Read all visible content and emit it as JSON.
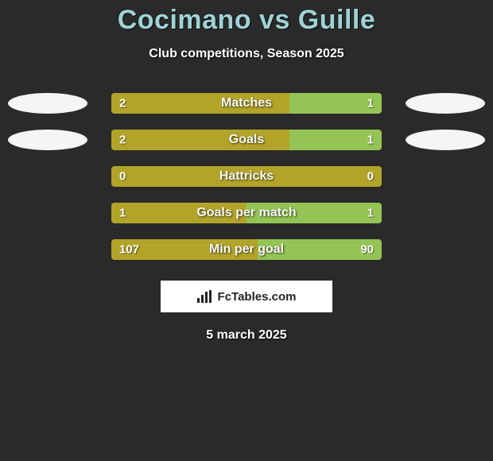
{
  "title": "Cocimano vs Guille",
  "subtitle": "Club competitions, Season 2025",
  "date": "5 march 2025",
  "brand": "FcTables.com",
  "colors": {
    "left": "#b2a429",
    "right": "#94c454",
    "background": "#2a2a2a",
    "avatar": "#f5f5f5",
    "title": "#9fd3d6"
  },
  "stats": [
    {
      "label": "Matches",
      "left_val": "2",
      "right_val": "1",
      "left_pct": 66,
      "right_pct": 34,
      "show_avatars": true
    },
    {
      "label": "Goals",
      "left_val": "2",
      "right_val": "1",
      "left_pct": 66,
      "right_pct": 34,
      "show_avatars": true
    },
    {
      "label": "Hattricks",
      "left_val": "0",
      "right_val": "0",
      "left_pct": 100,
      "right_pct": 0,
      "show_avatars": false
    },
    {
      "label": "Goals per match",
      "left_val": "1",
      "right_val": "1",
      "left_pct": 50,
      "right_pct": 50,
      "show_avatars": false
    },
    {
      "label": "Min per goal",
      "left_val": "107",
      "right_val": "90",
      "left_pct": 54,
      "right_pct": 46,
      "show_avatars": false
    }
  ],
  "typography": {
    "title_fontsize": 34,
    "subtitle_fontsize": 16,
    "label_fontsize": 16,
    "value_fontsize": 15
  }
}
